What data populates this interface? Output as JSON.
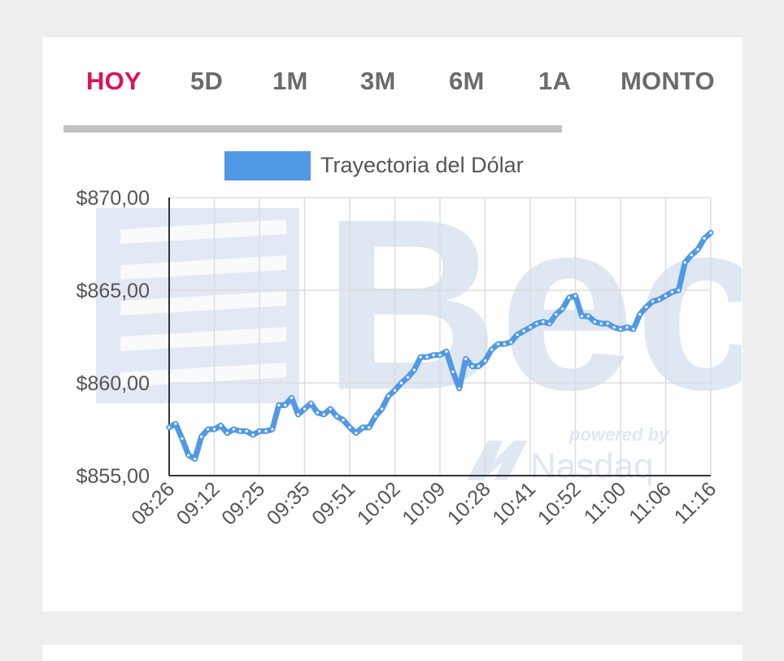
{
  "tabs": [
    {
      "label": "HOY",
      "active": true
    },
    {
      "label": "5D",
      "active": false
    },
    {
      "label": "1M",
      "active": false
    },
    {
      "label": "3M",
      "active": false
    },
    {
      "label": "6M",
      "active": false
    },
    {
      "label": "1A",
      "active": false
    },
    {
      "label": "MONTO",
      "active": false
    }
  ],
  "colors": {
    "active_tab": "#e0105a",
    "inactive_tab": "#6b6b6b",
    "series_line": "#5199e4",
    "grid": "#dddddd",
    "watermark": "#dfe7f3"
  },
  "watermark": {
    "brand": "Bec",
    "powered_by": "powered by",
    "partner": "Nasdaq"
  },
  "chart_data": {
    "type": "line",
    "legend": {
      "label": "Trayectoria del Dólar",
      "position": "top"
    },
    "grid": true,
    "ylim": [
      855,
      870
    ],
    "y_ticks": [
      870,
      865,
      860,
      855
    ],
    "y_tick_labels": [
      "$870,00",
      "$865,00",
      "$860,00",
      "$855,00"
    ],
    "x_tick_labels": [
      "08:26",
      "09:12",
      "09:25",
      "09:35",
      "09:51",
      "10:02",
      "10:09",
      "10:28",
      "10:41",
      "10:52",
      "11:00",
      "11:06",
      "11:16"
    ],
    "series": [
      {
        "name": "Trayectoria del Dólar",
        "values": [
          857.6,
          857.8,
          857.0,
          856.1,
          855.9,
          857.1,
          857.5,
          857.5,
          857.7,
          857.3,
          857.5,
          857.4,
          857.4,
          857.2,
          857.4,
          857.4,
          857.5,
          858.8,
          858.8,
          859.2,
          858.3,
          858.6,
          858.9,
          858.4,
          858.3,
          858.6,
          858.2,
          858.0,
          857.6,
          857.3,
          857.6,
          857.6,
          858.2,
          858.6,
          859.3,
          859.6,
          860.0,
          860.3,
          860.7,
          861.4,
          861.4,
          861.5,
          861.5,
          861.7,
          860.6,
          859.7,
          861.3,
          860.9,
          860.9,
          861.2,
          861.8,
          862.1,
          862.1,
          862.2,
          862.6,
          862.8,
          863.0,
          863.2,
          863.3,
          863.2,
          863.7,
          864.0,
          864.6,
          864.7,
          863.6,
          863.6,
          863.3,
          863.2,
          863.2,
          863.0,
          862.9,
          863.0,
          862.9,
          863.7,
          864.1,
          864.4,
          864.5,
          864.7,
          864.9,
          865.0,
          866.5,
          866.9,
          867.2,
          867.8,
          868.1
        ]
      }
    ]
  }
}
